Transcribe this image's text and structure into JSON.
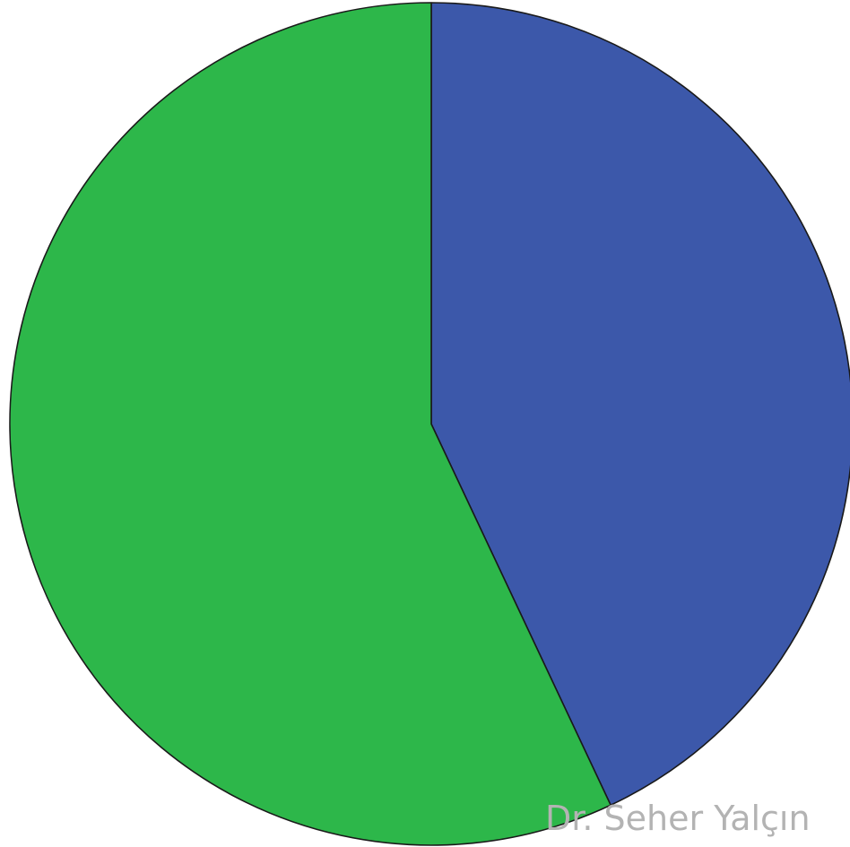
{
  "chart_data": {
    "type": "pie",
    "slices": [
      {
        "value": 43,
        "color": "#3c58aa"
      },
      {
        "value": 57,
        "color": "#2db74a"
      }
    ],
    "start_angle_deg": 0,
    "direction": "clockwise",
    "legend": "none",
    "title": ""
  },
  "watermark": {
    "text": "Dr. Seher Yalçın",
    "color": "#b3b3b3"
  }
}
